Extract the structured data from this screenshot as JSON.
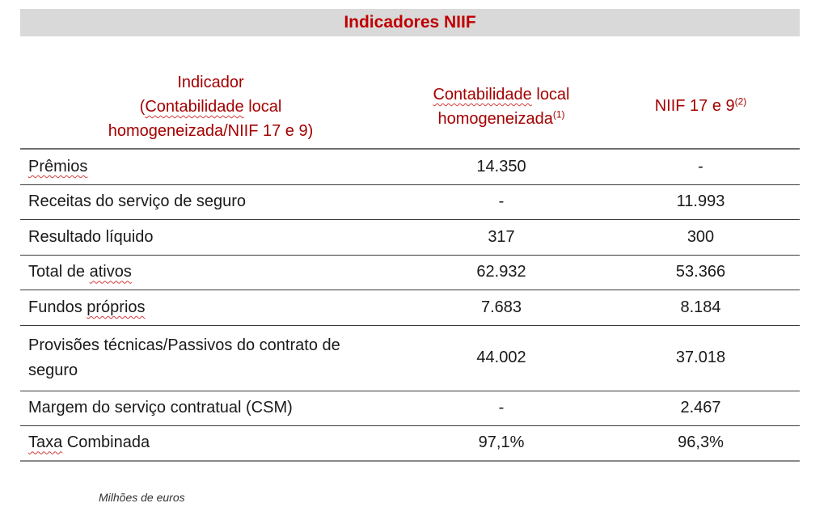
{
  "title": "Indicadores NIIF",
  "colors": {
    "title_red": "#c00000",
    "header_red": "#a40000",
    "title_bar_bg": "#d9d9d9"
  },
  "table": {
    "headers": {
      "col1_line1": "Indicador",
      "col1_line2_prefix": "(",
      "col1_line2_squiggle": "Contabilidade",
      "col1_line2_suffix": " local",
      "col1_line3": "homogeneizada/NIIF 17 e 9)",
      "col2_line1_squiggle": "Contabilidade",
      "col2_line1_suffix": " local",
      "col2_line2": "homogeneizada",
      "col2_sup": "(1)",
      "col3": "NIIF 17 e 9",
      "col3_sup": "(2)"
    },
    "rows": [
      {
        "label": "Prêmios",
        "local": "14.350",
        "niif": "-"
      },
      {
        "label": "Receitas do serviço de seguro",
        "local": "-",
        "niif": "11.993"
      },
      {
        "label": "Resultado líquido",
        "local": "317",
        "niif": "300"
      },
      {
        "label_prefix": "Total de ",
        "label_squiggle": "ativos",
        "local": "62.932",
        "niif": "53.366"
      },
      {
        "label_prefix": "Fundos ",
        "label_squiggle": "próprios",
        "local": "7.683",
        "niif": "8.184"
      },
      {
        "label_line1": "Provisões técnicas/Passivos do contrato de",
        "label_line2": "seguro",
        "local": "44.002",
        "niif": "37.018"
      },
      {
        "label": "Margem do serviço contratual (CSM)",
        "local": "-",
        "niif": "2.467"
      },
      {
        "label_squiggle": "Taxa",
        "label_suffix": " Combinada",
        "local": "97,1%",
        "niif": "96,3%"
      }
    ]
  },
  "footnote": "Milhões de euros"
}
